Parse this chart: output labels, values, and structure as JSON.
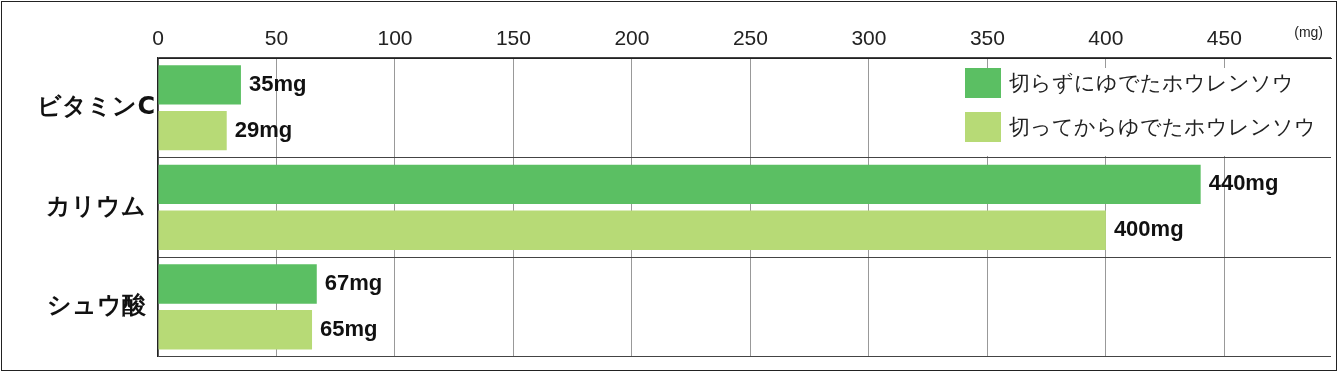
{
  "chart_data": {
    "type": "bar",
    "orientation": "horizontal",
    "xlabel": "(mg)",
    "categories": [
      "ビタミンC",
      "カリウム",
      "シュウ酸"
    ],
    "series": [
      {
        "name": "切らずにゆでたホウレンソウ",
        "color": "#5bbf63",
        "values": [
          35,
          440,
          67
        ],
        "value_labels": [
          "35mg",
          "440mg",
          "67mg"
        ]
      },
      {
        "name": "切ってからゆでたホウレンソウ",
        "color": "#b7da76",
        "values": [
          29,
          400,
          65
        ],
        "value_labels": [
          "29mg",
          "400mg",
          "65mg"
        ]
      }
    ],
    "xlim": [
      0,
      495
    ],
    "xticks": [
      0,
      50,
      100,
      150,
      200,
      250,
      300,
      350,
      400,
      450
    ],
    "grid": true,
    "legend": "top right"
  }
}
